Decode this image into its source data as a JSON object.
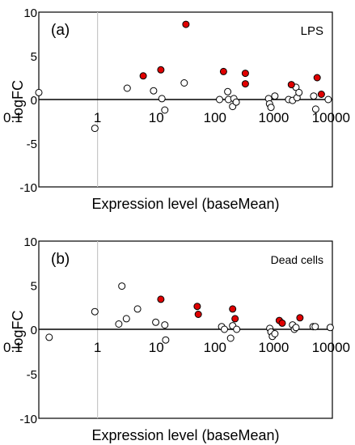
{
  "chart_data": [
    {
      "type": "scatter",
      "panel_label": "(a)",
      "annotation": "LPS",
      "ylabel": "logFC",
      "xlabel": "Expression level (baseMean)",
      "x_scale": "log",
      "xlim": [
        0.1,
        10000
      ],
      "ylim": [
        -10,
        10
      ],
      "x_tick_labels": [
        "0.1",
        "1",
        "10",
        "100",
        "1000",
        "10000"
      ],
      "y_tick_labels": [
        "10",
        "5",
        "0",
        "-5",
        "-10"
      ],
      "highlight_color": "#e00000",
      "series": [
        {
          "kind": "highlighted",
          "points": [
            [
              6,
              2.7
            ],
            [
              12,
              3.4
            ],
            [
              32,
              8.6
            ],
            [
              140,
              3.2
            ],
            [
              330,
              3.0
            ],
            [
              330,
              1.8
            ],
            [
              2000,
              1.7
            ],
            [
              5500,
              2.5
            ],
            [
              6500,
              0.6
            ]
          ]
        },
        {
          "kind": "open",
          "points": [
            [
              0.1,
              0.8
            ],
            [
              0.9,
              -3.3
            ],
            [
              3.2,
              1.3
            ],
            [
              9,
              1.0
            ],
            [
              12.5,
              0.1
            ],
            [
              14,
              -1.2
            ],
            [
              30,
              1.9
            ],
            [
              120,
              0.0
            ],
            [
              165,
              0.9
            ],
            [
              170,
              0.0
            ],
            [
              200,
              -0.8
            ],
            [
              210,
              0.1
            ],
            [
              230,
              -0.3
            ],
            [
              820,
              0.1
            ],
            [
              850,
              -0.5
            ],
            [
              900,
              -0.9
            ],
            [
              1050,
              0.4
            ],
            [
              1800,
              0.0
            ],
            [
              2100,
              -0.1
            ],
            [
              2400,
              1.4
            ],
            [
              2500,
              0.2
            ],
            [
              2700,
              0.8
            ],
            [
              4800,
              0.4
            ],
            [
              5200,
              -1.1
            ],
            [
              8500,
              0.0
            ]
          ]
        }
      ]
    },
    {
      "type": "scatter",
      "panel_label": "(b)",
      "annotation": "Dead cells",
      "ylabel": "logFC",
      "xlabel": "Expression level (baseMean)",
      "x_scale": "log",
      "xlim": [
        0.1,
        10000
      ],
      "ylim": [
        -10,
        10
      ],
      "x_tick_labels": [
        "0.1",
        "1",
        "10",
        "100",
        "1000",
        "10000"
      ],
      "y_tick_labels": [
        "10",
        "5",
        "0",
        "-5",
        "-10"
      ],
      "highlight_color": "#e00000",
      "series": [
        {
          "kind": "highlighted",
          "points": [
            [
              12,
              3.4
            ],
            [
              50,
              2.6
            ],
            [
              52,
              1.7
            ],
            [
              200,
              2.3
            ],
            [
              220,
              1.2
            ],
            [
              1250,
              1.0
            ],
            [
              1400,
              0.7
            ],
            [
              2800,
              1.3
            ]
          ]
        },
        {
          "kind": "open",
          "points": [
            [
              0.15,
              -0.9
            ],
            [
              0.9,
              2.0
            ],
            [
              2.3,
              0.6
            ],
            [
              2.6,
              4.9
            ],
            [
              3.1,
              1.2
            ],
            [
              4.8,
              2.3
            ],
            [
              9.8,
              0.8
            ],
            [
              14,
              0.5
            ],
            [
              14.5,
              -1.2
            ],
            [
              130,
              0.3
            ],
            [
              145,
              0.0
            ],
            [
              185,
              -1.0
            ],
            [
              200,
              0.4
            ],
            [
              235,
              0.0
            ],
            [
              860,
              0.1
            ],
            [
              900,
              -0.3
            ],
            [
              950,
              -0.8
            ],
            [
              1050,
              -0.5
            ],
            [
              2100,
              0.5
            ],
            [
              2250,
              0.0
            ],
            [
              2400,
              0.2
            ],
            [
              4700,
              0.3
            ],
            [
              5100,
              0.3
            ],
            [
              9200,
              0.2
            ]
          ]
        }
      ]
    }
  ]
}
